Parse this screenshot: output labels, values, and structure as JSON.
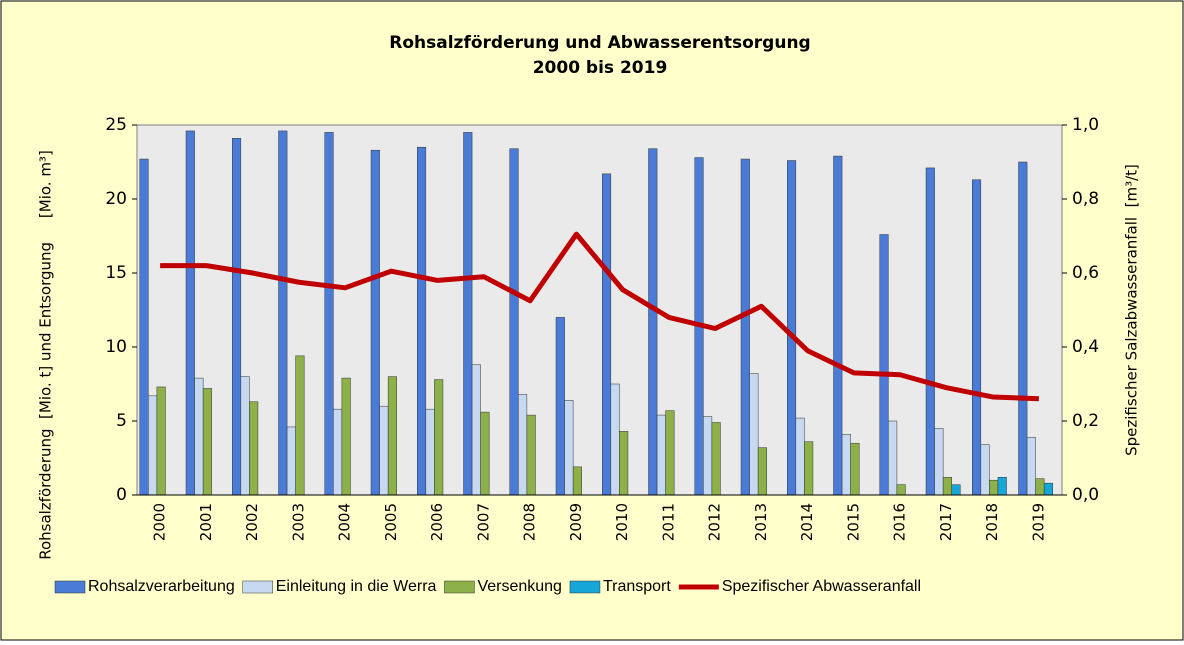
{
  "chart_data": {
    "type": "bar",
    "title": [
      "Rohsalzförderung und Abwasserentsorgung",
      "2000 bis 2019"
    ],
    "ylabel": "Rohsalzförderung  [Mio. t] und Entsorgung     [Mio. m³]",
    "y2label": "Spezifischer Salzabwasseranfall  [m³/t]",
    "categories": [
      "2000",
      "2001",
      "2002",
      "2003",
      "2004",
      "2005",
      "2006",
      "2007",
      "2008",
      "2009",
      "2010",
      "2011",
      "2012",
      "2013",
      "2014",
      "2015",
      "2016",
      "2017",
      "2018",
      "2019"
    ],
    "series": [
      {
        "name": "Rohsalzverarbeitung",
        "color": "#4a7bd6",
        "values": [
          22.7,
          24.6,
          24.1,
          24.6,
          24.5,
          23.3,
          23.5,
          24.5,
          23.4,
          12.0,
          21.7,
          23.4,
          22.8,
          22.7,
          22.6,
          22.9,
          17.6,
          22.1,
          21.3,
          22.5
        ]
      },
      {
        "name": "Einleitung in die Werra",
        "color": "#c6d9f1",
        "values": [
          6.7,
          7.9,
          8.0,
          4.6,
          5.8,
          6.0,
          5.8,
          8.8,
          6.8,
          6.4,
          7.5,
          5.4,
          5.3,
          8.2,
          5.2,
          4.1,
          5.0,
          4.5,
          3.4,
          3.9
        ]
      },
      {
        "name": "Versenkung",
        "color": "#8db048",
        "values": [
          7.3,
          7.2,
          6.3,
          9.4,
          7.9,
          8.0,
          7.8,
          5.6,
          5.4,
          1.9,
          4.3,
          5.7,
          4.9,
          3.2,
          3.6,
          3.5,
          0.7,
          1.2,
          1.0,
          1.1
        ]
      },
      {
        "name": "Transport",
        "color": "#17a6d8",
        "values": [
          null,
          null,
          null,
          null,
          null,
          null,
          null,
          null,
          null,
          null,
          null,
          null,
          null,
          null,
          null,
          null,
          null,
          0.7,
          1.2,
          0.8
        ]
      },
      {
        "name": "Spezifischer Abwasseranfall",
        "color": "#c00000",
        "type": "line",
        "axis": "y2",
        "values": [
          0.62,
          0.62,
          0.6,
          0.575,
          0.56,
          0.605,
          0.58,
          0.59,
          0.525,
          0.705,
          0.555,
          0.48,
          0.45,
          0.51,
          0.39,
          0.33,
          0.325,
          0.29,
          0.265,
          0.26
        ]
      }
    ],
    "ylim": [
      0,
      25
    ],
    "yticks": [
      0,
      5,
      10,
      15,
      20,
      25
    ],
    "y2lim": [
      0,
      1
    ],
    "y2ticks": [
      {
        "value": 0,
        "label": "0,0"
      },
      {
        "value": 0.2,
        "label": "0,2"
      },
      {
        "value": 0.4,
        "label": "0,4"
      },
      {
        "value": 0.6,
        "label": "0,6"
      },
      {
        "value": 0.8,
        "label": "0,8"
      },
      {
        "value": 1,
        "label": "1,0"
      }
    ],
    "legend": "bottom"
  }
}
